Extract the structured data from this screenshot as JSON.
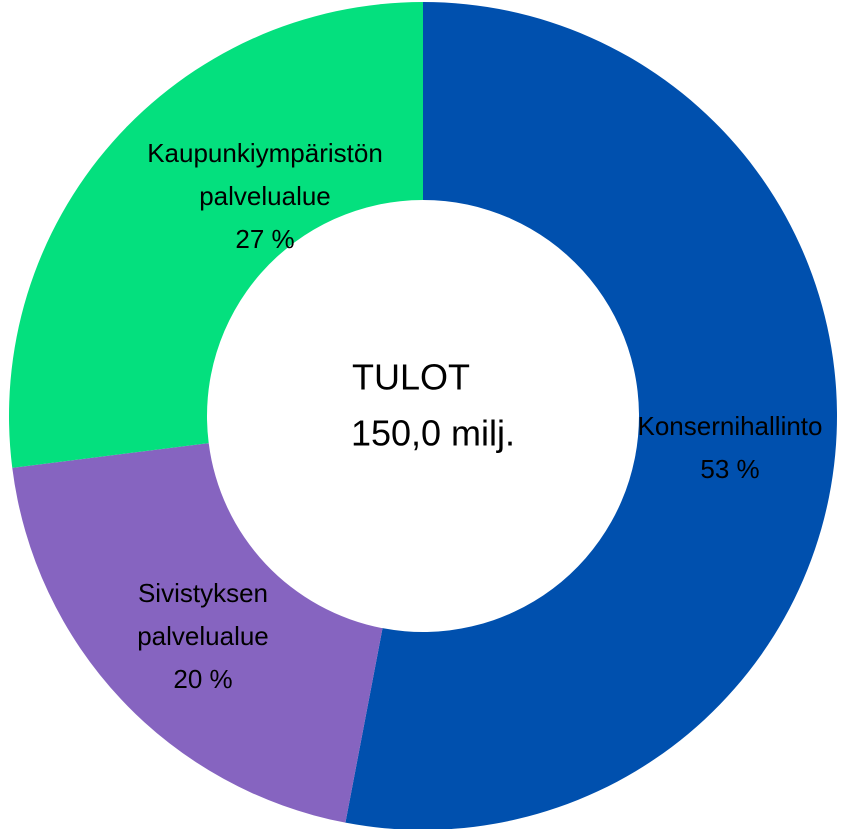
{
  "chart_data": {
    "type": "donut",
    "title": "TULOT",
    "subtitle": "150,0 milj.",
    "categories": [
      "Konsernihallinto",
      "Sivistyksen palvelualue",
      "Kaupunkiympäristön palvelualue"
    ],
    "values": [
      53,
      20,
      27
    ],
    "value_labels": [
      "53 %",
      "20 %",
      "27 %"
    ],
    "colors": [
      "#0050ae",
      "#8664c0",
      "#04e07e"
    ]
  }
}
